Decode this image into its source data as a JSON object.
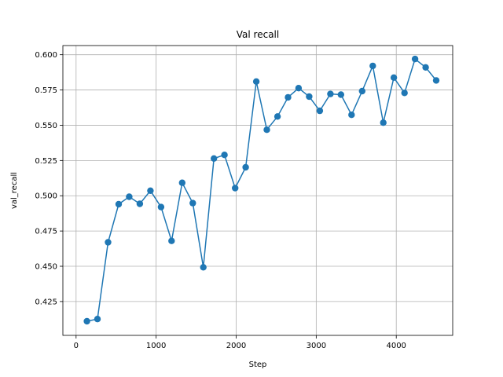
{
  "chart_data": {
    "type": "line",
    "title": "Val recall",
    "xlabel": "Step",
    "ylabel": "val_recall",
    "xlim": [
      -165,
      4705
    ],
    "ylim": [
      0.401,
      0.6065
    ],
    "x_ticks": [
      0,
      1000,
      2000,
      3000,
      4000
    ],
    "x_tick_labels": [
      "0",
      "1000",
      "2000",
      "3000",
      "4000"
    ],
    "y_ticks": [
      0.425,
      0.45,
      0.475,
      0.5,
      0.525,
      0.55,
      0.575,
      0.6
    ],
    "y_tick_labels": [
      "0.425",
      "0.450",
      "0.475",
      "0.500",
      "0.525",
      "0.550",
      "0.575",
      "0.600"
    ],
    "grid": true,
    "color": "#1f77b4",
    "marker": "circle",
    "series": [
      {
        "x": [
          135,
          267,
          400,
          532,
          664,
          796,
          929,
          1061,
          1193,
          1325,
          1458,
          1590,
          1722,
          1854,
          1987,
          2119,
          2251,
          2383,
          2516,
          2648,
          2780,
          2912,
          3045,
          3177,
          3309,
          3441,
          3574,
          3706,
          3838,
          3970,
          4103,
          4235,
          4367,
          4499
        ],
        "y": [
          0.411,
          0.4126,
          0.467,
          0.494,
          0.4993,
          0.4943,
          0.5036,
          0.492,
          0.468,
          0.5092,
          0.4948,
          0.4493,
          0.5264,
          0.529,
          0.5054,
          0.5202,
          0.581,
          0.5468,
          0.5562,
          0.5698,
          0.5763,
          0.5703,
          0.5602,
          0.5722,
          0.5717,
          0.5574,
          0.5742,
          0.5921,
          0.5518,
          0.5838,
          0.5729,
          0.597,
          0.591,
          0.5818
        ]
      }
    ]
  }
}
